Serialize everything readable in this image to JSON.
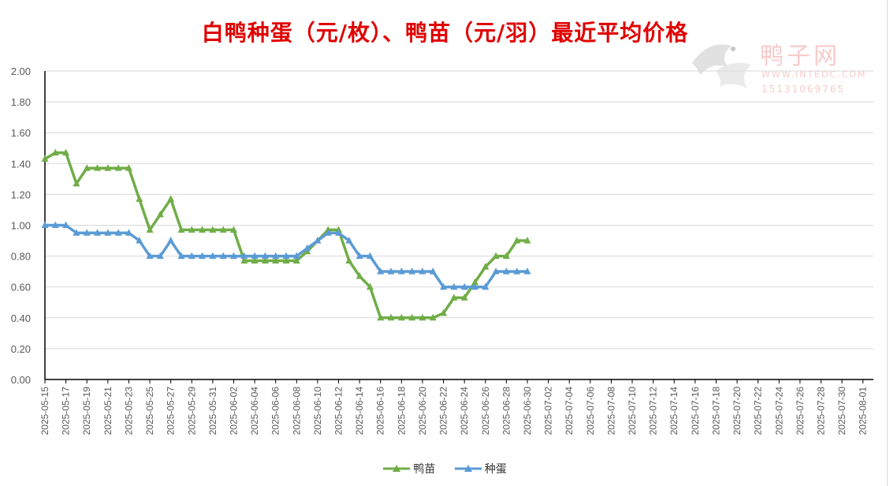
{
  "title": "白鸭种蛋（元/枚）、鸭苗（元/羽）最近平均价格",
  "watermark": {
    "name": "鸭子网",
    "url": "WWW.INTEDC.COM",
    "phone": "15131069765"
  },
  "chart_data": {
    "type": "line",
    "ylim": [
      0,
      2
    ],
    "yticks": [
      "0.00",
      "0.20",
      "0.40",
      "0.60",
      "0.80",
      "1.00",
      "1.20",
      "1.40",
      "1.60",
      "1.80",
      "2.00"
    ],
    "grid": true,
    "legend_position": "bottom",
    "x_start": "2025-05-15",
    "x_end": "2025-08-02",
    "x_tick_labels": [
      "2025-05-15",
      "2025-05-17",
      "2025-05-19",
      "2025-05-21",
      "2025-05-23",
      "2025-05-25",
      "2025-05-27",
      "2025-05-29",
      "2025-05-31",
      "2025-06-02",
      "2025-06-04",
      "2025-06-06",
      "2025-06-08",
      "2025-06-10",
      "2025-06-12",
      "2025-06-14",
      "2025-06-16",
      "2025-06-18",
      "2025-06-20",
      "2025-06-22",
      "2025-06-24",
      "2025-06-26",
      "2025-06-28",
      "2025-06-30",
      "2025-07-02",
      "2025-07-04",
      "2025-07-06",
      "2025-07-08",
      "2025-07-10",
      "2025-07-12",
      "2025-07-14",
      "2025-07-16",
      "2025-07-18",
      "2025-07-20",
      "2025-07-22",
      "2025-07-24",
      "2025-07-26",
      "2025-07-28",
      "2025-07-30",
      "2025-08-01"
    ],
    "series": [
      {
        "name": "鸭苗",
        "color": "#70ad47",
        "points": [
          [
            "2025-05-15",
            1.43
          ],
          [
            "2025-05-16",
            1.47
          ],
          [
            "2025-05-17",
            1.47
          ],
          [
            "2025-05-18",
            1.27
          ],
          [
            "2025-05-19",
            1.37
          ],
          [
            "2025-05-20",
            1.37
          ],
          [
            "2025-05-21",
            1.37
          ],
          [
            "2025-05-22",
            1.37
          ],
          [
            "2025-05-23",
            1.37
          ],
          [
            "2025-05-24",
            1.17
          ],
          [
            "2025-05-25",
            0.97
          ],
          [
            "2025-05-26",
            1.07
          ],
          [
            "2025-05-27",
            1.17
          ],
          [
            "2025-05-28",
            0.97
          ],
          [
            "2025-05-29",
            0.97
          ],
          [
            "2025-05-30",
            0.97
          ],
          [
            "2025-05-31",
            0.97
          ],
          [
            "2025-06-01",
            0.97
          ],
          [
            "2025-06-02",
            0.97
          ],
          [
            "2025-06-03",
            0.77
          ],
          [
            "2025-06-04",
            0.77
          ],
          [
            "2025-06-05",
            0.77
          ],
          [
            "2025-06-06",
            0.77
          ],
          [
            "2025-06-07",
            0.77
          ],
          [
            "2025-06-08",
            0.77
          ],
          [
            "2025-06-09",
            0.83
          ],
          [
            "2025-06-10",
            0.9
          ],
          [
            "2025-06-11",
            0.97
          ],
          [
            "2025-06-12",
            0.97
          ],
          [
            "2025-06-13",
            0.77
          ],
          [
            "2025-06-14",
            0.67
          ],
          [
            "2025-06-15",
            0.6
          ],
          [
            "2025-06-16",
            0.4
          ],
          [
            "2025-06-17",
            0.4
          ],
          [
            "2025-06-18",
            0.4
          ],
          [
            "2025-06-19",
            0.4
          ],
          [
            "2025-06-20",
            0.4
          ],
          [
            "2025-06-21",
            0.4
          ],
          [
            "2025-06-22",
            0.43
          ],
          [
            "2025-06-23",
            0.53
          ],
          [
            "2025-06-24",
            0.53
          ],
          [
            "2025-06-25",
            0.63
          ],
          [
            "2025-06-26",
            0.73
          ],
          [
            "2025-06-27",
            0.8
          ],
          [
            "2025-06-28",
            0.8
          ],
          [
            "2025-06-29",
            0.9
          ],
          [
            "2025-06-30",
            0.9
          ]
        ]
      },
      {
        "name": "种蛋",
        "color": "#5b9bd5",
        "points": [
          [
            "2025-05-15",
            1.0
          ],
          [
            "2025-05-16",
            1.0
          ],
          [
            "2025-05-17",
            1.0
          ],
          [
            "2025-05-18",
            0.95
          ],
          [
            "2025-05-19",
            0.95
          ],
          [
            "2025-05-20",
            0.95
          ],
          [
            "2025-05-21",
            0.95
          ],
          [
            "2025-05-22",
            0.95
          ],
          [
            "2025-05-23",
            0.95
          ],
          [
            "2025-05-24",
            0.9
          ],
          [
            "2025-05-25",
            0.8
          ],
          [
            "2025-05-26",
            0.8
          ],
          [
            "2025-05-27",
            0.9
          ],
          [
            "2025-05-28",
            0.8
          ],
          [
            "2025-05-29",
            0.8
          ],
          [
            "2025-05-30",
            0.8
          ],
          [
            "2025-05-31",
            0.8
          ],
          [
            "2025-06-01",
            0.8
          ],
          [
            "2025-06-02",
            0.8
          ],
          [
            "2025-06-03",
            0.8
          ],
          [
            "2025-06-04",
            0.8
          ],
          [
            "2025-06-05",
            0.8
          ],
          [
            "2025-06-06",
            0.8
          ],
          [
            "2025-06-07",
            0.8
          ],
          [
            "2025-06-08",
            0.8
          ],
          [
            "2025-06-09",
            0.85
          ],
          [
            "2025-06-10",
            0.9
          ],
          [
            "2025-06-11",
            0.95
          ],
          [
            "2025-06-12",
            0.95
          ],
          [
            "2025-06-13",
            0.9
          ],
          [
            "2025-06-14",
            0.8
          ],
          [
            "2025-06-15",
            0.8
          ],
          [
            "2025-06-16",
            0.7
          ],
          [
            "2025-06-17",
            0.7
          ],
          [
            "2025-06-18",
            0.7
          ],
          [
            "2025-06-19",
            0.7
          ],
          [
            "2025-06-20",
            0.7
          ],
          [
            "2025-06-21",
            0.7
          ],
          [
            "2025-06-22",
            0.6
          ],
          [
            "2025-06-23",
            0.6
          ],
          [
            "2025-06-24",
            0.6
          ],
          [
            "2025-06-25",
            0.6
          ],
          [
            "2025-06-26",
            0.6
          ],
          [
            "2025-06-27",
            0.7
          ],
          [
            "2025-06-28",
            0.7
          ],
          [
            "2025-06-29",
            0.7
          ],
          [
            "2025-06-30",
            0.7
          ]
        ]
      }
    ]
  }
}
